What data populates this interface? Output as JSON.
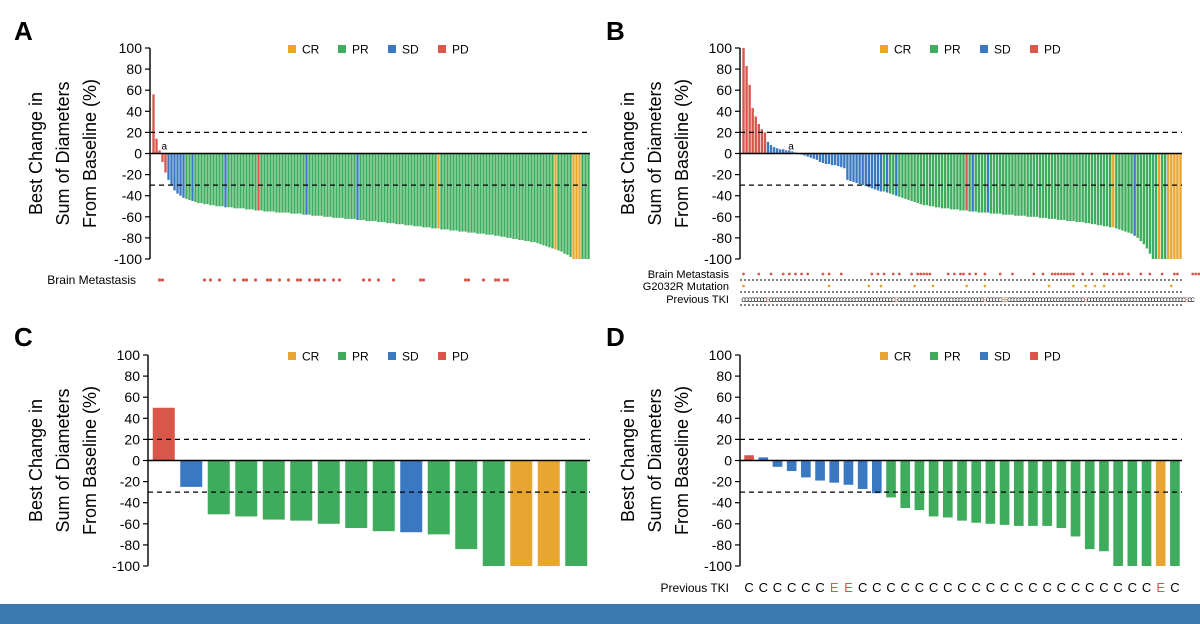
{
  "colors": {
    "CR": "#e8a630",
    "PR": "#3eac5c",
    "SD": "#3a78c2",
    "PD": "#d9574a",
    "axis": "#000000",
    "band": "#3b78b0"
  },
  "legend_order": [
    "CR",
    "PR",
    "SD",
    "PD"
  ],
  "ylabel": [
    "Best Change in",
    "Sum of Diameters",
    "From Baseline (%)"
  ],
  "chart_data": [
    {
      "panel": "A",
      "type": "bar",
      "ylim": [
        -100,
        100
      ],
      "yticks": [
        100,
        80,
        60,
        40,
        20,
        0,
        -20,
        -40,
        -60,
        -80,
        -100
      ],
      "reference_lines": [
        20,
        -30
      ],
      "values": [
        56,
        14,
        3,
        -8,
        -18,
        -25,
        -30,
        -35,
        -38,
        -40,
        -42,
        -43,
        -44,
        -45,
        -46,
        -47,
        -47,
        -48,
        -48,
        -49,
        -49,
        -50,
        -50,
        -50,
        -51,
        -51,
        -51,
        -52,
        -52,
        -52,
        -52,
        -53,
        -53,
        -53,
        -54,
        -54,
        -54,
        -55,
        -55,
        -55,
        -55,
        -56,
        -56,
        -56,
        -56,
        -56,
        -57,
        -57,
        -57,
        -57,
        -58,
        -58,
        -58,
        -59,
        -59,
        -59,
        -59,
        -60,
        -60,
        -60,
        -61,
        -61,
        -61,
        -61,
        -62,
        -62,
        -62,
        -62,
        -63,
        -63,
        -63,
        -64,
        -64,
        -64,
        -64,
        -65,
        -65,
        -65,
        -66,
        -66,
        -66,
        -67,
        -67,
        -67,
        -68,
        -68,
        -68,
        -69,
        -69,
        -69,
        -70,
        -70,
        -70,
        -71,
        -71,
        -71,
        -72,
        -72,
        -72,
        -73,
        -73,
        -73,
        -74,
        -74,
        -74,
        -75,
        -75,
        -75,
        -76,
        -76,
        -76,
        -77,
        -77,
        -77,
        -78,
        -78,
        -79,
        -79,
        -80,
        -80,
        -81,
        -81,
        -82,
        -82,
        -83,
        -83,
        -84,
        -84,
        -85,
        -86,
        -87,
        -88,
        -89,
        -90,
        -91,
        -92,
        -93,
        -95,
        -96,
        -98,
        -100,
        -100,
        -100,
        -100,
        -100,
        -100
      ],
      "responses": [
        "PD",
        "PD",
        "PD",
        "PD",
        "PD",
        "SD",
        "SD",
        "SD",
        "SD",
        "SD",
        "SD",
        "PR",
        "PR",
        "SD",
        "PR",
        "PR",
        "PR",
        "PR",
        "PR",
        "PR",
        "PR",
        "PR",
        "PR",
        "PR",
        "SD",
        "PR",
        "PR",
        "PR",
        "PR",
        "PR",
        "PR",
        "PR",
        "PR",
        "PR",
        "PR",
        "PD",
        "PR",
        "PR",
        "PR",
        "PR",
        "PR",
        "PR",
        "PR",
        "PR",
        "PR",
        "PR",
        "PR",
        "PR",
        "PR",
        "PR",
        "PR",
        "SD",
        "PR",
        "PR",
        "PR",
        "PR",
        "PR",
        "PR",
        "PR",
        "PR",
        "PR",
        "PR",
        "PR",
        "PR",
        "PR",
        "PR",
        "PR",
        "PR",
        "SD",
        "PR",
        "PR",
        "PR",
        "PR",
        "PR",
        "PR",
        "PR",
        "PR",
        "PR",
        "PR",
        "PR",
        "PR",
        "PR",
        "PR",
        "PR",
        "PR",
        "PR",
        "PR",
        "PR",
        "PR",
        "PR",
        "PR",
        "PR",
        "PR",
        "PR",
        "PR",
        "CR",
        "PR",
        "PR",
        "PR",
        "PR",
        "PR",
        "PR",
        "PR",
        "PR",
        "PR",
        "PR",
        "PR",
        "PR",
        "PR",
        "PR",
        "PR",
        "PR",
        "PR",
        "PR",
        "PR",
        "PR",
        "PR",
        "PR",
        "PR",
        "PR",
        "PR",
        "PR",
        "PR",
        "PR",
        "PR",
        "PR",
        "PR",
        "PR",
        "PR",
        "PR",
        "PR",
        "PR",
        "PR",
        "PR",
        "CR",
        "PR",
        "PR",
        "PR",
        "PR",
        "PR",
        "CR",
        "CR",
        "CR",
        "PR",
        "PR",
        "PR",
        "PR",
        "PR",
        "PR",
        "PR",
        "PR",
        "PR",
        "PR",
        "PR"
      ],
      "annotations": [
        {
          "index": 2,
          "text": "a"
        }
      ],
      "rows": [
        {
          "label": "Brain Metastasis",
          "indices": [
            2,
            3,
            17,
            19,
            22,
            27,
            30,
            31,
            34,
            38,
            39,
            42,
            45,
            48,
            49,
            52,
            54,
            55,
            57,
            60,
            62,
            70,
            72,
            75,
            80,
            89,
            90,
            104,
            105,
            110,
            114,
            115,
            117,
            118
          ]
        }
      ]
    },
    {
      "panel": "B",
      "type": "bar",
      "ylim": [
        -100,
        100
      ],
      "yticks": [
        100,
        80,
        60,
        40,
        20,
        0,
        -20,
        -40,
        -60,
        -80,
        -100
      ],
      "reference_lines": [
        20,
        -30
      ],
      "values": [
        100,
        83,
        65,
        43,
        35,
        28,
        23,
        20,
        11,
        8,
        6,
        5,
        4,
        4,
        3,
        3,
        2,
        1,
        0,
        -1,
        -2,
        -3,
        -4,
        -5,
        -6,
        -8,
        -9,
        -10,
        -10,
        -11,
        -11,
        -12,
        -13,
        -14,
        -25,
        -26,
        -27,
        -28,
        -29,
        -30,
        -31,
        -32,
        -33,
        -34,
        -35,
        -36,
        -36,
        -37,
        -38,
        -39,
        -40,
        -41,
        -42,
        -43,
        -44,
        -45,
        -46,
        -47,
        -48,
        -49,
        -49,
        -50,
        -50,
        -51,
        -51,
        -52,
        -52,
        -52,
        -53,
        -53,
        -53,
        -54,
        -54,
        -54,
        -55,
        -55,
        -55,
        -56,
        -56,
        -56,
        -56,
        -57,
        -57,
        -57,
        -57,
        -58,
        -58,
        -58,
        -58,
        -59,
        -59,
        -59,
        -59,
        -60,
        -60,
        -60,
        -60,
        -61,
        -61,
        -61,
        -62,
        -62,
        -62,
        -63,
        -63,
        -63,
        -64,
        -64,
        -64,
        -65,
        -65,
        -65,
        -66,
        -66,
        -67,
        -67,
        -68,
        -68,
        -69,
        -69,
        -70,
        -70,
        -71,
        -72,
        -73,
        -74,
        -75,
        -76,
        -78,
        -80,
        -83,
        -86,
        -90,
        -95,
        -100,
        -100,
        -100,
        -100,
        -100,
        -100,
        -100,
        -100,
        -100,
        -100
      ],
      "responses": [
        "PD",
        "PD",
        "PD",
        "PD",
        "PD",
        "PD",
        "PD",
        "PD",
        "SD",
        "SD",
        "SD",
        "SD",
        "SD",
        "SD",
        "SD",
        "SD",
        "SD",
        "SD",
        "SD",
        "SD",
        "SD",
        "SD",
        "SD",
        "SD",
        "SD",
        "SD",
        "SD",
        "SD",
        "SD",
        "SD",
        "SD",
        "SD",
        "SD",
        "SD",
        "SD",
        "SD",
        "SD",
        "SD",
        "SD",
        "SD",
        "SD",
        "SD",
        "SD",
        "SD",
        "SD",
        "SD",
        "PR",
        "SD",
        "PR",
        "PR",
        "SD",
        "PR",
        "PR",
        "PR",
        "PR",
        "PR",
        "PR",
        "PR",
        "PR",
        "PR",
        "PR",
        "PR",
        "PR",
        "PR",
        "PR",
        "PR",
        "PR",
        "PR",
        "PR",
        "PR",
        "PR",
        "PR",
        "PR",
        "PD",
        "PR",
        "SD",
        "PR",
        "PR",
        "PR",
        "PR",
        "SD",
        "PR",
        "PR",
        "PR",
        "PR",
        "PR",
        "PR",
        "PR",
        "PR",
        "PR",
        "PR",
        "PR",
        "PR",
        "PR",
        "PR",
        "PR",
        "PR",
        "PR",
        "PR",
        "PR",
        "PR",
        "PR",
        "PR",
        "PR",
        "PR",
        "PR",
        "PR",
        "PR",
        "PR",
        "PR",
        "PR",
        "PR",
        "PR",
        "PR",
        "PR",
        "PR",
        "PR",
        "PR",
        "PR",
        "PR",
        "PR",
        "CR",
        "PR",
        "PR",
        "PR",
        "PR",
        "PR",
        "PR",
        "SD",
        "PR",
        "PR",
        "PR",
        "PR",
        "PR",
        "PR",
        "PR",
        "CR",
        "PR",
        "PR",
        "CR",
        "CR",
        "CR",
        "CR",
        "CR",
        "CR"
      ],
      "annotations": [
        {
          "index": 14,
          "text": "a"
        }
      ],
      "rows": [
        {
          "label": "Brain Metastasis",
          "indices": [
            0,
            5,
            9,
            13,
            15,
            17,
            19,
            21,
            26,
            28,
            32,
            42,
            44,
            46,
            49,
            51,
            55,
            57,
            58,
            59,
            60,
            61,
            67,
            69,
            71,
            72,
            74,
            76,
            79,
            84,
            88,
            95,
            98,
            101,
            102,
            103,
            104,
            105,
            106,
            107,
            108,
            111,
            114,
            118,
            119,
            121,
            123,
            124,
            126,
            130,
            133,
            137,
            141,
            142,
            147,
            148,
            149,
            150,
            153
          ]
        },
        {
          "label": "G2032R Mutation",
          "indices": [
            0,
            28,
            41,
            45,
            56,
            62,
            73,
            79,
            100,
            108,
            112,
            115,
            118,
            140
          ]
        },
        {
          "label": "Previous TKI",
          "letters": "CCCCCCCCECCCCCCCCCCCCCCCCCCCCCCCCCCCCCCCCCCCCCCCCCECCCCCCCCCCCCCCCCCCCCCCCCCCCCECCCCCEECCCCCCCCCCCCCCCCCCCCCCCCCECCCCCCCCCCCCCCCCCCCCCCCCCCCCCCCCECC"
        }
      ]
    },
    {
      "panel": "C",
      "type": "bar",
      "ylim": [
        -100,
        100
      ],
      "yticks": [
        100,
        80,
        60,
        40,
        20,
        0,
        -20,
        -40,
        -60,
        -80,
        -100
      ],
      "reference_lines": [
        20,
        -30
      ],
      "values": [
        50,
        -25,
        -51,
        -53,
        -56,
        -57,
        -60,
        -64,
        -67,
        -68,
        -70,
        -84,
        -100,
        -100,
        -100,
        -100
      ],
      "responses": [
        "PD",
        "SD",
        "PR",
        "PR",
        "PR",
        "PR",
        "PR",
        "PR",
        "PR",
        "SD",
        "PR",
        "PR",
        "PR",
        "CR",
        "CR",
        "PR"
      ],
      "annotations": [],
      "rows": []
    },
    {
      "panel": "D",
      "type": "bar",
      "ylim": [
        -100,
        100
      ],
      "yticks": [
        100,
        80,
        60,
        40,
        20,
        0,
        -20,
        -40,
        -60,
        -80,
        -100
      ],
      "reference_lines": [
        20,
        -30
      ],
      "values": [
        5,
        3,
        -6,
        -10,
        -16,
        -19,
        -21,
        -23,
        -27,
        -31,
        -35,
        -45,
        -47,
        -53,
        -54,
        -57,
        -59,
        -60,
        -61,
        -62,
        -62,
        -62,
        -64,
        -72,
        -84,
        -86,
        -100,
        -100,
        -100,
        -100,
        -100
      ],
      "responses": [
        "PD",
        "SD",
        "SD",
        "SD",
        "SD",
        "SD",
        "SD",
        "SD",
        "SD",
        "SD",
        "PR",
        "PR",
        "PR",
        "PR",
        "PR",
        "PR",
        "PR",
        "PR",
        "PR",
        "PR",
        "PR",
        "PR",
        "PR",
        "PR",
        "PR",
        "PR",
        "PR",
        "PR",
        "PR",
        "CR",
        "PR"
      ],
      "annotations": [],
      "rows": [
        {
          "label": "Previous TKI",
          "letters": "CCCCCCEECCCCCCCCCCCCCCCCCCCCCEC"
        }
      ]
    }
  ]
}
